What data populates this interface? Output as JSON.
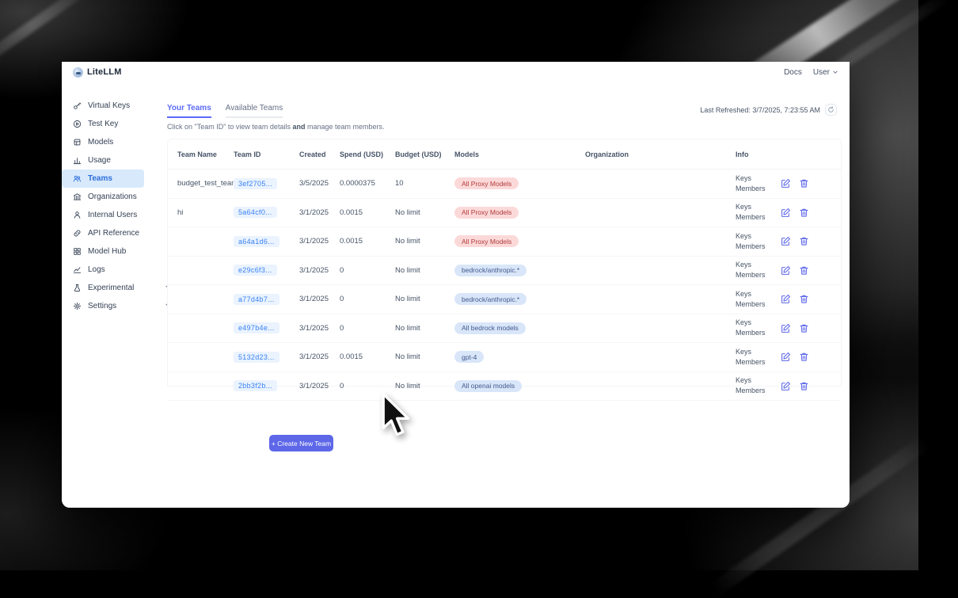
{
  "window": {
    "brand": "LiteLLM",
    "header_right": {
      "docs": "Docs",
      "user": "User"
    }
  },
  "sidebar": {
    "items": [
      {
        "label": "Virtual Keys",
        "icon": "key-icon",
        "active": false,
        "expandable": false
      },
      {
        "label": "Test Key",
        "icon": "play-circle-icon",
        "active": false,
        "expandable": false
      },
      {
        "label": "Models",
        "icon": "cube-icon",
        "active": false,
        "expandable": false
      },
      {
        "label": "Usage",
        "icon": "bar-chart-icon",
        "active": false,
        "expandable": false
      },
      {
        "label": "Teams",
        "icon": "users-icon",
        "active": true,
        "expandable": false
      },
      {
        "label": "Organizations",
        "icon": "bank-icon",
        "active": false,
        "expandable": false
      },
      {
        "label": "Internal Users",
        "icon": "user-icon",
        "active": false,
        "expandable": false
      },
      {
        "label": "API Reference",
        "icon": "link-icon",
        "active": false,
        "expandable": false
      },
      {
        "label": "Model Hub",
        "icon": "grid-icon",
        "active": false,
        "expandable": false
      },
      {
        "label": "Logs",
        "icon": "line-chart-icon",
        "active": false,
        "expandable": false
      },
      {
        "label": "Experimental",
        "icon": "flask-icon",
        "active": false,
        "expandable": true
      },
      {
        "label": "Settings",
        "icon": "gear-icon",
        "active": false,
        "expandable": true
      }
    ]
  },
  "main": {
    "tabs": [
      {
        "label": "Your Teams",
        "active": true
      },
      {
        "label": "Available Teams",
        "active": false
      }
    ],
    "subtitle": {
      "pre": "Click on \"Team ID\" to view team details ",
      "bold": "and",
      "post": " manage team members."
    },
    "last_refreshed": "Last Refreshed: 3/7/2025, 7:23:55 AM",
    "create_button_label": "+ Create New Team",
    "table": {
      "columns": [
        "Team Name",
        "Team ID",
        "Created",
        "Spend (USD)",
        "Budget (USD)",
        "Models",
        "Organization",
        "Info"
      ],
      "info_links": [
        "Keys",
        "Members"
      ],
      "rows": [
        {
          "name": "budget_test_team",
          "id": "3ef2705...",
          "created": "3/5/2025",
          "spend": "0.0000375",
          "budget": "10",
          "model": "All Proxy Models",
          "model_color": "red",
          "org": ""
        },
        {
          "name": "hi",
          "id": "5a64cf0...",
          "created": "3/1/2025",
          "spend": "0.0015",
          "budget": "No limit",
          "model": "All Proxy Models",
          "model_color": "red",
          "org": ""
        },
        {
          "name": "",
          "id": "a64a1d6...",
          "created": "3/1/2025",
          "spend": "0.0015",
          "budget": "No limit",
          "model": "All Proxy Models",
          "model_color": "red",
          "org": ""
        },
        {
          "name": "",
          "id": "e29c6f3...",
          "created": "3/1/2025",
          "spend": "0",
          "budget": "No limit",
          "model": "bedrock/anthropic.*",
          "model_color": "blue",
          "org": ""
        },
        {
          "name": "",
          "id": "a77d4b7...",
          "created": "3/1/2025",
          "spend": "0",
          "budget": "No limit",
          "model": "bedrock/anthropic.*",
          "model_color": "blue",
          "org": ""
        },
        {
          "name": "",
          "id": "e497b4e...",
          "created": "3/1/2025",
          "spend": "0",
          "budget": "No limit",
          "model": "All bedrock models",
          "model_color": "blue",
          "org": ""
        },
        {
          "name": "",
          "id": "5132d23...",
          "created": "3/1/2025",
          "spend": "0.0015",
          "budget": "No limit",
          "model": "gpt-4",
          "model_color": "blue",
          "org": ""
        },
        {
          "name": "",
          "id": "2bb3f2b...",
          "created": "3/1/2025",
          "spend": "0",
          "budget": "No limit",
          "model": "All openai models",
          "model_color": "blue",
          "org": ""
        }
      ]
    }
  },
  "colors": {
    "accent_indigo": "#5d67e8",
    "tab_active": "#5b6bf5",
    "sidebar_active_bg": "#d7e9fb",
    "sidebar_active_text": "#2f6fdb",
    "id_chip_text": "#3b82f6",
    "badge_red_bg": "#fcd9d9",
    "badge_red_text": "#b23b3b",
    "badge_blue_bg": "#d9e6f9",
    "badge_blue_text": "#41588c"
  }
}
